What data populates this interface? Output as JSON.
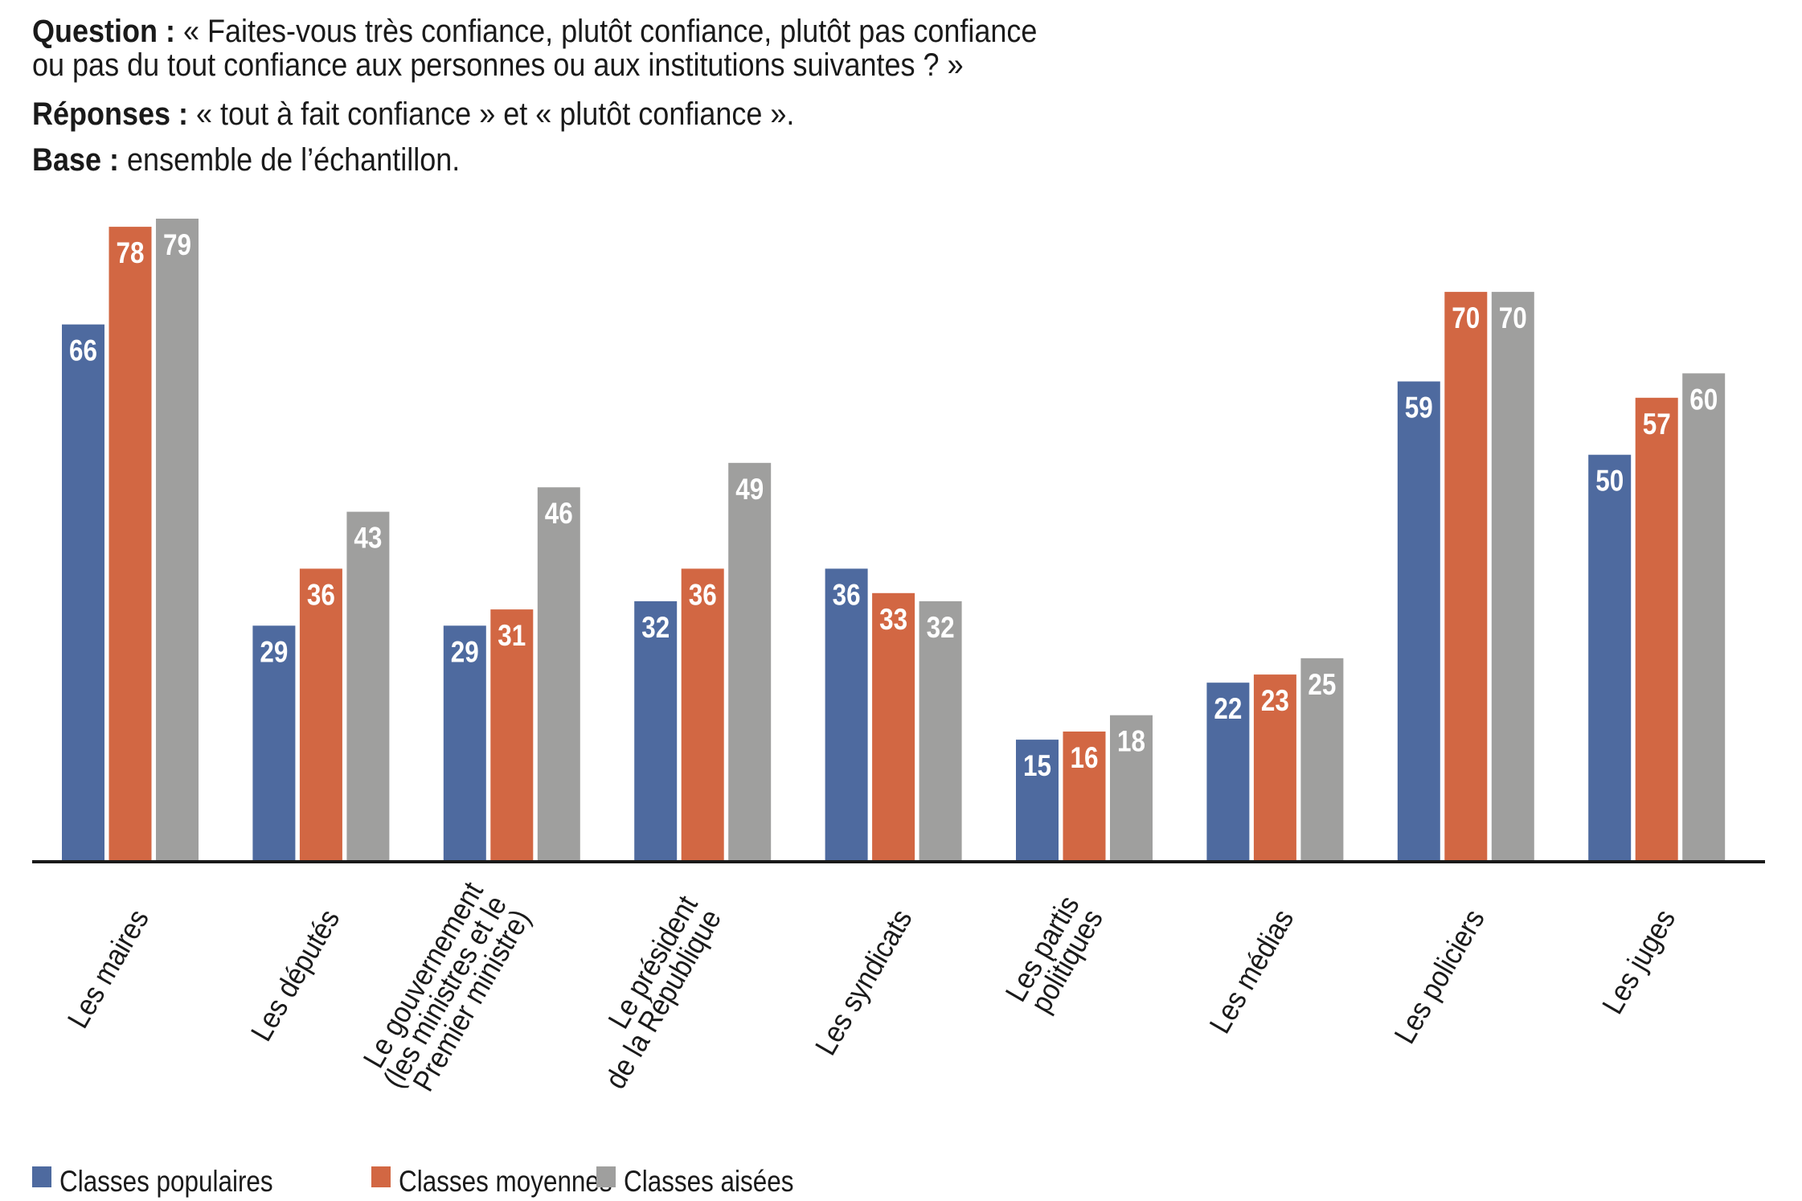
{
  "header": {
    "question_label": "Question :",
    "question_line1": " « Faites-vous très confiance, plutôt confiance, plutôt pas confiance",
    "question_line2": "ou pas du tout confiance aux personnes ou aux institutions suivantes ? »",
    "responses_label": "Réponses :",
    "responses_text": " « tout à fait confiance » et « plutôt confiance ».",
    "base_label": "Base :",
    "base_text": " ensemble de l’échantillon."
  },
  "chart_data": {
    "type": "bar",
    "title": "",
    "xlabel": "",
    "ylabel": "",
    "ylim": [
      0,
      80
    ],
    "grid": false,
    "legend_position": "bottom-left",
    "categories": [
      [
        "Les maires"
      ],
      [
        "Les députés"
      ],
      [
        "Le gouvernement",
        "(les ministres et le",
        "Premier ministre)"
      ],
      [
        "Le président",
        "de la République"
      ],
      [
        "Les syndicats"
      ],
      [
        "Les partis",
        "politiques"
      ],
      [
        "Les médias"
      ],
      [
        "Les policiers"
      ],
      [
        "Les juges"
      ]
    ],
    "series": [
      {
        "name": "Classes populaires",
        "color": "#4E6A9F",
        "values": [
          66,
          29,
          29,
          32,
          36,
          15,
          22,
          59,
          50
        ]
      },
      {
        "name": "Classes moyennes",
        "color": "#D26743",
        "values": [
          78,
          36,
          31,
          36,
          33,
          16,
          23,
          70,
          57
        ]
      },
      {
        "name": "Classes aisées",
        "color": "#9F9F9E",
        "values": [
          79,
          43,
          46,
          49,
          32,
          18,
          25,
          70,
          60
        ]
      }
    ]
  }
}
